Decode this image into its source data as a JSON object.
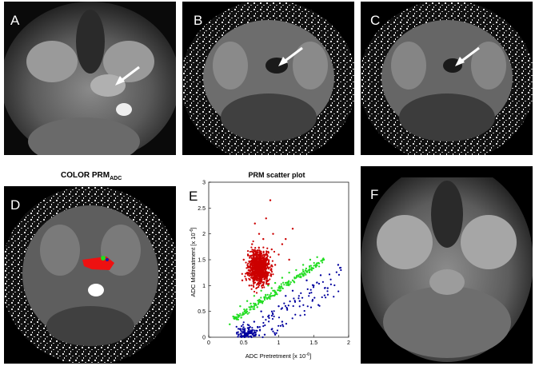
{
  "panels": {
    "a": {
      "label": "A"
    },
    "b": {
      "label": "B"
    },
    "c": {
      "label": "C"
    },
    "d": {
      "label": "D",
      "title_main": "COLOR PRM",
      "title_sub": "ADC"
    },
    "e": {
      "label": "E"
    },
    "f": {
      "label": "F"
    }
  },
  "colors": {
    "red": "#cc0000",
    "green": "#22dd22",
    "blue": "#00009e"
  },
  "chart_data": {
    "type": "scatter",
    "title": "PRM scatter plot",
    "xlabel": "ADC Pretretment [x 10",
    "xlabel_exp": "-6",
    "xlabel_end": "]",
    "ylabel": "ADC Midtreatment [x 10",
    "ylabel_exp": "-6",
    "ylabel_end": "]",
    "xlim": [
      0,
      2
    ],
    "ylim": [
      0,
      3
    ],
    "xticks": [
      "0",
      "0.5",
      "1",
      "1.5",
      "2"
    ],
    "yticks": [
      "0",
      "0.5",
      "1",
      "1.5",
      "2",
      "2.5",
      "3"
    ],
    "legend": "none",
    "grid": false,
    "series": [
      {
        "color": "red",
        "points": [
          [
            0.55,
            1.25
          ],
          [
            0.6,
            1.4
          ],
          [
            0.65,
            1.1
          ],
          [
            0.7,
            1.6
          ],
          [
            0.75,
            1.3
          ],
          [
            0.8,
            1.5
          ],
          [
            0.62,
            1.8
          ],
          [
            0.85,
            1.2
          ],
          [
            0.9,
            1.7
          ],
          [
            0.58,
            1.0
          ],
          [
            0.72,
            2.0
          ],
          [
            0.95,
            1.4
          ],
          [
            1.0,
            1.6
          ],
          [
            0.68,
            1.2
          ],
          [
            0.78,
            1.9
          ],
          [
            0.82,
            2.3
          ],
          [
            0.88,
            2.65
          ],
          [
            1.05,
            1.8
          ],
          [
            1.1,
            1.9
          ],
          [
            1.2,
            2.1
          ],
          [
            0.5,
            1.5
          ],
          [
            0.48,
            1.1
          ],
          [
            0.66,
            2.2
          ],
          [
            0.92,
            2.0
          ],
          [
            1.15,
            1.5
          ]
        ]
      },
      {
        "color": "green",
        "points": [
          [
            0.45,
            0.6
          ],
          [
            0.55,
            0.7
          ],
          [
            0.65,
            0.8
          ],
          [
            0.75,
            0.9
          ],
          [
            0.85,
            1.0
          ],
          [
            0.95,
            1.05
          ],
          [
            1.05,
            1.15
          ],
          [
            1.15,
            1.25
          ],
          [
            1.25,
            1.3
          ],
          [
            1.35,
            1.4
          ],
          [
            1.45,
            1.5
          ],
          [
            1.55,
            1.55
          ],
          [
            0.35,
            0.4
          ],
          [
            0.3,
            0.25
          ],
          [
            0.6,
            0.65
          ],
          [
            0.9,
            0.95
          ]
        ]
      },
      {
        "color": "blue",
        "points": [
          [
            0.55,
            0.05
          ],
          [
            0.6,
            0.1
          ],
          [
            0.65,
            0.3
          ],
          [
            0.7,
            0.2
          ],
          [
            0.75,
            0.5
          ],
          [
            0.8,
            0.05
          ],
          [
            0.85,
            0.4
          ],
          [
            0.9,
            0.15
          ],
          [
            1.0,
            0.6
          ],
          [
            1.1,
            0.8
          ],
          [
            1.2,
            0.9
          ],
          [
            1.3,
            0.7
          ],
          [
            1.4,
            1.1
          ],
          [
            1.5,
            1.0
          ],
          [
            1.6,
            1.2
          ],
          [
            1.7,
            0.95
          ],
          [
            1.85,
            1.4
          ],
          [
            0.95,
            0.05
          ],
          [
            1.05,
            0.3
          ]
        ]
      }
    ]
  }
}
